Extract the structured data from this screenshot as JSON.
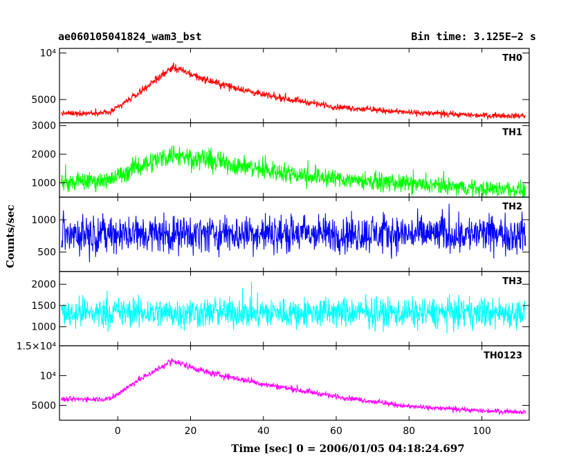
{
  "header": {
    "title": "ae060105041824_wam3_bst",
    "bin_time": "Bin time: 3.125E−2 s"
  },
  "chart_data": {
    "type": "line",
    "xlabel": "Time [sec] 0 = 2006/01/05 04:18:24.697",
    "ylabel": "Counts/sec",
    "xlim": [
      -16,
      113
    ],
    "x_ticks": [
      0,
      20,
      40,
      60,
      80,
      100
    ],
    "time_range": [
      -15.5,
      112
    ],
    "panels": [
      {
        "name": "TH0",
        "color": "#ff0000",
        "ylim": [
          2500,
          10500
        ],
        "y_ticks": [
          {
            "v": 5000,
            "label": "5000"
          },
          {
            "v": 10000,
            "label": "10⁴"
          }
        ],
        "profile": [
          {
            "t": -15,
            "v": 3500
          },
          {
            "t": -2,
            "v": 3600
          },
          {
            "t": 5,
            "v": 5500
          },
          {
            "t": 15,
            "v": 8500
          },
          {
            "t": 25,
            "v": 7000
          },
          {
            "t": 40,
            "v": 5500
          },
          {
            "t": 60,
            "v": 4200
          },
          {
            "t": 80,
            "v": 3600
          },
          {
            "t": 100,
            "v": 3300
          },
          {
            "t": 112,
            "v": 3250
          }
        ],
        "spread": 450
      },
      {
        "name": "TH1",
        "color": "#00ff00",
        "ylim": [
          500,
          3100
        ],
        "y_ticks": [
          {
            "v": 1000,
            "label": "1000"
          },
          {
            "v": 2000,
            "label": "2000"
          },
          {
            "v": 3000,
            "label": "3000"
          }
        ],
        "profile": [
          {
            "t": -15,
            "v": 1000
          },
          {
            "t": -2,
            "v": 1100
          },
          {
            "t": 5,
            "v": 1550
          },
          {
            "t": 15,
            "v": 2000
          },
          {
            "t": 25,
            "v": 1800
          },
          {
            "t": 40,
            "v": 1450
          },
          {
            "t": 60,
            "v": 1150
          },
          {
            "t": 80,
            "v": 950
          },
          {
            "t": 100,
            "v": 800
          },
          {
            "t": 112,
            "v": 750
          }
        ],
        "spread": 450
      },
      {
        "name": "TH2",
        "color": "#0000ff",
        "ylim": [
          200,
          1350
        ],
        "y_ticks": [
          {
            "v": 500,
            "label": "500"
          },
          {
            "v": 1000,
            "label": "1000"
          }
        ],
        "profile": [
          {
            "t": -15,
            "v": 780
          },
          {
            "t": 112,
            "v": 780
          }
        ],
        "spread": 420
      },
      {
        "name": "TH3",
        "color": "#00ffff",
        "ylim": [
          550,
          2300
        ],
        "y_ticks": [
          {
            "v": 1000,
            "label": "1000"
          },
          {
            "v": 1500,
            "label": "1500"
          },
          {
            "v": 2000,
            "label": "2000"
          }
        ],
        "profile": [
          {
            "t": -15,
            "v": 1330
          },
          {
            "t": 112,
            "v": 1330
          }
        ],
        "spread": 520
      },
      {
        "name": "TH0123",
        "color": "#ff00ff",
        "ylim": [
          2500,
          15000
        ],
        "y_ticks": [
          {
            "v": 5000,
            "label": "5000"
          },
          {
            "v": 10000,
            "label": "10⁴"
          },
          {
            "v": 15000,
            "label": "1.5×10⁴"
          }
        ],
        "profile": [
          {
            "t": -15,
            "v": 6000
          },
          {
            "t": -2,
            "v": 6100
          },
          {
            "t": 5,
            "v": 9000
          },
          {
            "t": 15,
            "v": 12500
          },
          {
            "t": 25,
            "v": 10500
          },
          {
            "t": 40,
            "v": 8600
          },
          {
            "t": 60,
            "v": 6500
          },
          {
            "t": 80,
            "v": 4800
          },
          {
            "t": 100,
            "v": 4100
          },
          {
            "t": 112,
            "v": 3900
          }
        ],
        "spread": 650
      }
    ]
  }
}
